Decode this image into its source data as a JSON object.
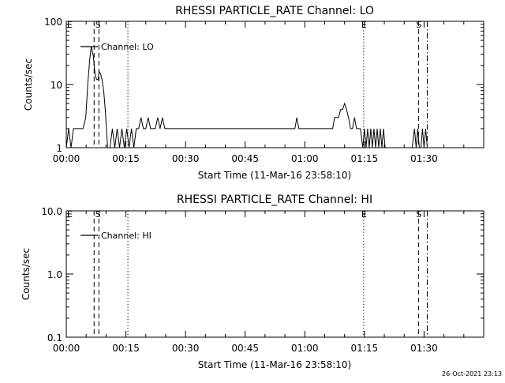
{
  "window": {
    "background": "#ffffff",
    "ink": "#000000"
  },
  "footer": {
    "timestamp": "26-Oct-2021 23:13"
  },
  "chart_data": [
    {
      "type": "line",
      "title": "RHESSI PARTICLE_RATE Channel: LO",
      "xlabel": "Start Time (11-Mar-16 23:58:10)",
      "ylabel": "Counts/sec",
      "xscale": "time-minutes",
      "xlim": [
        0,
        105
      ],
      "xticks": [
        0,
        15,
        30,
        45,
        60,
        75,
        90
      ],
      "xtick_labels": [
        "00:00",
        "00:15",
        "00:30",
        "00:45",
        "01:00",
        "01:15",
        "01:30"
      ],
      "yscale": "log",
      "ylim": [
        1,
        100
      ],
      "yticks": [
        1,
        10,
        100
      ],
      "ytick_labels": [
        "1",
        "10",
        "100"
      ],
      "grid": false,
      "legend": {
        "position": "top-left",
        "entries": [
          "Channel: LO"
        ]
      },
      "markers": [
        {
          "x": 7,
          "style": "dashed",
          "label": ""
        },
        {
          "x": 8.2,
          "style": "dashed",
          "label": ""
        },
        {
          "x": 15.5,
          "style": "dotted",
          "label": ""
        },
        {
          "x": 74.8,
          "style": "dotted",
          "label": ""
        },
        {
          "x": 88.6,
          "style": "dashed",
          "label": ""
        },
        {
          "x": 90.8,
          "style": "dashdot",
          "label": ""
        }
      ],
      "annotations": [
        {
          "text": "E",
          "x": 0.2
        },
        {
          "text": "S",
          "x": 7.3
        },
        {
          "text": "E",
          "x": 74.2
        },
        {
          "text": "S",
          "x": 88
        }
      ],
      "series": [
        {
          "name": "Channel: LO",
          "points": [
            [
              0,
              1
            ],
            [
              0.6,
              2
            ],
            [
              1.2,
              1
            ],
            [
              1.8,
              2
            ],
            [
              2.6,
              2
            ],
            [
              3.4,
              2
            ],
            [
              4.2,
              2
            ],
            [
              4.9,
              3
            ],
            [
              5.4,
              10
            ],
            [
              5.9,
              25
            ],
            [
              6.3,
              40
            ],
            [
              6.8,
              28
            ],
            [
              7.2,
              15
            ],
            [
              7.6,
              12
            ],
            [
              8,
              12
            ],
            [
              8.3,
              16
            ],
            [
              8.6,
              15
            ],
            [
              9,
              12
            ],
            [
              9.4,
              8
            ],
            [
              9.8,
              4
            ],
            [
              10.1,
              2
            ],
            [
              10.4,
              1
            ],
            [
              11,
              1
            ],
            [
              11.6,
              2
            ],
            [
              12.2,
              1
            ],
            [
              12.8,
              2
            ],
            [
              13.4,
              1
            ],
            [
              14,
              2
            ],
            [
              14.6,
              1
            ],
            [
              15.2,
              2
            ],
            [
              15.8,
              1
            ],
            [
              16.4,
              2
            ],
            [
              17,
              1
            ],
            [
              17.6,
              2
            ],
            [
              18.2,
              2
            ],
            [
              18.8,
              3
            ],
            [
              19.4,
              2
            ],
            [
              20,
              2
            ],
            [
              20.6,
              3
            ],
            [
              21.2,
              2
            ],
            [
              21.8,
              2
            ],
            [
              22.4,
              2
            ],
            [
              23,
              3
            ],
            [
              23.6,
              2
            ],
            [
              24.2,
              3
            ],
            [
              24.8,
              2
            ],
            [
              25.4,
              2
            ],
            [
              26,
              2
            ],
            [
              26.5,
              2
            ],
            [
              27,
              2
            ],
            [
              27.5,
              2
            ],
            [
              28,
              2
            ],
            [
              28.5,
              2
            ],
            [
              29,
              2
            ],
            [
              29.5,
              2
            ],
            [
              30,
              2
            ],
            [
              30.5,
              2
            ],
            [
              31,
              2
            ],
            [
              31.5,
              2
            ],
            [
              32,
              2
            ],
            [
              32.5,
              2
            ],
            [
              33,
              2
            ],
            [
              33.5,
              2
            ],
            [
              34,
              2
            ],
            [
              34.5,
              2
            ],
            [
              35,
              2
            ],
            [
              35.5,
              2
            ],
            [
              36,
              2
            ],
            [
              36.5,
              2
            ],
            [
              37,
              2
            ],
            [
              37.5,
              2
            ],
            [
              38,
              2
            ],
            [
              38.5,
              2
            ],
            [
              39,
              2
            ],
            [
              39.5,
              2
            ],
            [
              40,
              2
            ],
            [
              40.5,
              2
            ],
            [
              41,
              2
            ],
            [
              41.5,
              2
            ],
            [
              42,
              2
            ],
            [
              42.5,
              2
            ],
            [
              43,
              2
            ],
            [
              43.5,
              2
            ],
            [
              44,
              2
            ],
            [
              44.5,
              2
            ],
            [
              45,
              2
            ],
            [
              45.5,
              2
            ],
            [
              46,
              2
            ],
            [
              46.5,
              2
            ],
            [
              47,
              2
            ],
            [
              47.5,
              2
            ],
            [
              48,
              2
            ],
            [
              48.5,
              2
            ],
            [
              49,
              2
            ],
            [
              49.5,
              2
            ],
            [
              50,
              2
            ],
            [
              50.5,
              2
            ],
            [
              51,
              2
            ],
            [
              51.5,
              2
            ],
            [
              52,
              2
            ],
            [
              52.5,
              2
            ],
            [
              53,
              2
            ],
            [
              53.5,
              2
            ],
            [
              54,
              2
            ],
            [
              54.5,
              2
            ],
            [
              55,
              2
            ],
            [
              55.5,
              2
            ],
            [
              56,
              2
            ],
            [
              56.5,
              2
            ],
            [
              57,
              2
            ],
            [
              57.5,
              2
            ],
            [
              58,
              3
            ],
            [
              58.5,
              2
            ],
            [
              59,
              2
            ],
            [
              59.5,
              2
            ],
            [
              60,
              2
            ],
            [
              60.5,
              2
            ],
            [
              61,
              2
            ],
            [
              61.5,
              2
            ],
            [
              62,
              2
            ],
            [
              62.5,
              2
            ],
            [
              63,
              2
            ],
            [
              63.5,
              2
            ],
            [
              64,
              2
            ],
            [
              64.5,
              2
            ],
            [
              65,
              2
            ],
            [
              65.5,
              2
            ],
            [
              66,
              2
            ],
            [
              66.5,
              2
            ],
            [
              67,
              2
            ],
            [
              67.5,
              3
            ],
            [
              68,
              3
            ],
            [
              68.5,
              3
            ],
            [
              69,
              4
            ],
            [
              69.5,
              4
            ],
            [
              70,
              5
            ],
            [
              70.5,
              4
            ],
            [
              71,
              3
            ],
            [
              71.5,
              2
            ],
            [
              72,
              2
            ],
            [
              72.5,
              3
            ],
            [
              73,
              2
            ],
            [
              73.5,
              2
            ],
            [
              74,
              2
            ],
            [
              74.6,
              1
            ],
            [
              75,
              2
            ],
            [
              75.4,
              1
            ],
            [
              75.8,
              2
            ],
            [
              76.2,
              1
            ],
            [
              76.6,
              2
            ],
            [
              77,
              1
            ],
            [
              77.4,
              2
            ],
            [
              77.8,
              1
            ],
            [
              78.2,
              2
            ],
            [
              78.6,
              1
            ],
            [
              79,
              2
            ],
            [
              79.4,
              1
            ],
            [
              79.8,
              2
            ],
            [
              80.2,
              1
            ],
            [
              80.6,
              1
            ],
            [
              81,
              1
            ],
            [
              82,
              1
            ],
            [
              83,
              1
            ],
            [
              84,
              1
            ],
            [
              85,
              1
            ],
            [
              86,
              1
            ],
            [
              87,
              1
            ],
            [
              87.6,
              2
            ],
            [
              88,
              1
            ],
            [
              88.4,
              2
            ],
            [
              88.8,
              1
            ],
            [
              89.2,
              1
            ],
            [
              89.6,
              2
            ],
            [
              90,
              1
            ],
            [
              90.4,
              2
            ],
            [
              90.8,
              1
            ],
            [
              105,
              1
            ]
          ]
        }
      ]
    },
    {
      "type": "line",
      "title": "RHESSI PARTICLE_RATE Channel: HI",
      "xlabel": "Start Time (11-Mar-16 23:58:10)",
      "ylabel": "Counts/sec",
      "xscale": "time-minutes",
      "xlim": [
        0,
        105
      ],
      "xticks": [
        0,
        15,
        30,
        45,
        60,
        75,
        90
      ],
      "xtick_labels": [
        "00:00",
        "00:15",
        "00:30",
        "00:45",
        "01:00",
        "01:15",
        "01:30"
      ],
      "yscale": "log",
      "ylim": [
        0.1,
        10
      ],
      "yticks": [
        0.1,
        1,
        10
      ],
      "ytick_labels": [
        "0.1",
        "1.0",
        "10.0"
      ],
      "grid": false,
      "legend": {
        "position": "top-left",
        "entries": [
          "Channel: HI"
        ]
      },
      "markers": [
        {
          "x": 7,
          "style": "dashed",
          "label": ""
        },
        {
          "x": 8.2,
          "style": "dashed",
          "label": ""
        },
        {
          "x": 15.5,
          "style": "dotted",
          "label": ""
        },
        {
          "x": 74.8,
          "style": "dotted",
          "label": ""
        },
        {
          "x": 88.6,
          "style": "dashed",
          "label": ""
        },
        {
          "x": 90.8,
          "style": "dashdot",
          "label": ""
        }
      ],
      "annotations": [
        {
          "text": "E",
          "x": 0.2
        },
        {
          "text": "S",
          "x": 7.3
        },
        {
          "text": "E",
          "x": 74.2
        },
        {
          "text": "S",
          "x": 88
        }
      ],
      "series": [
        {
          "name": "Channel: HI",
          "points": []
        }
      ]
    }
  ]
}
